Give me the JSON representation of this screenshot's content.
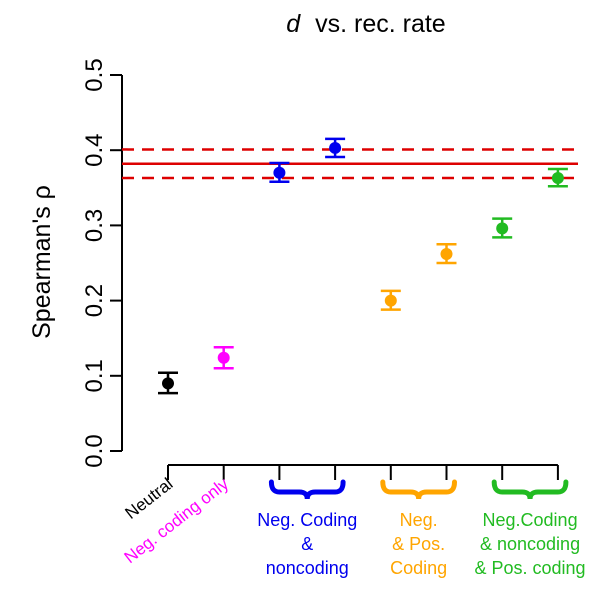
{
  "chart_data": {
    "type": "scatter",
    "title_var": "d",
    "title_rest": "vs. rec. rate",
    "ylabel": "Spearman's ρ",
    "ylim": [
      0.0,
      0.5
    ],
    "y_ticks": [
      "0.0",
      "0.1",
      "0.2",
      "0.3",
      "0.4",
      "0.5"
    ],
    "points": [
      {
        "x": 1,
        "y": 0.09,
        "lo": 0.077,
        "hi": 0.104,
        "color": "#000000"
      },
      {
        "x": 2,
        "y": 0.124,
        "lo": 0.11,
        "hi": 0.138,
        "color": "#ff00ff"
      },
      {
        "x": 3,
        "y": 0.37,
        "lo": 0.358,
        "hi": 0.383,
        "color": "#0000ee"
      },
      {
        "x": 4,
        "y": 0.403,
        "lo": 0.391,
        "hi": 0.415,
        "color": "#0000ee"
      },
      {
        "x": 5,
        "y": 0.2,
        "lo": 0.188,
        "hi": 0.213,
        "color": "#ffa500"
      },
      {
        "x": 6,
        "y": 0.262,
        "lo": 0.25,
        "hi": 0.275,
        "color": "#ffa500"
      },
      {
        "x": 7,
        "y": 0.296,
        "lo": 0.284,
        "hi": 0.309,
        "color": "#22bb22"
      },
      {
        "x": 8,
        "y": 0.363,
        "lo": 0.352,
        "hi": 0.375,
        "color": "#22bb22"
      }
    ],
    "reference_line": {
      "y": 0.382,
      "lo": 0.363,
      "hi": 0.401,
      "color": "#dd0000"
    },
    "x_labels": [
      {
        "text": "Neutral",
        "color": "#000000"
      },
      {
        "text": "Neg. coding only",
        "color": "#ff00ff"
      }
    ],
    "groups": [
      {
        "from": 3,
        "to": 4,
        "color": "#0000ee",
        "lines": [
          "Neg. Coding",
          "&",
          "noncoding"
        ]
      },
      {
        "from": 5,
        "to": 6,
        "color": "#ffa500",
        "lines": [
          "Neg.",
          "& Pos.",
          "Coding"
        ]
      },
      {
        "from": 7,
        "to": 8,
        "color": "#22bb22",
        "lines": [
          "Neg.Coding",
          "& noncoding",
          "& Pos. coding"
        ]
      }
    ]
  }
}
